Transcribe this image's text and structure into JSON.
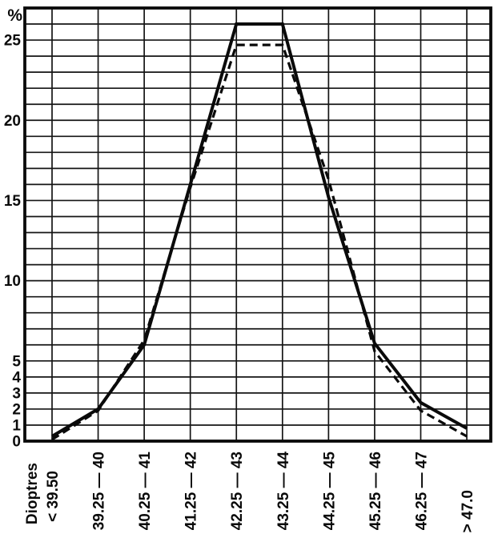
{
  "chart_data": {
    "type": "line",
    "title": "",
    "xlabel": "Dioptres",
    "ylabel": "%",
    "categories": [
      "< 39.50",
      "39.25 — 40",
      "40.25 — 41",
      "41.25 — 42",
      "42.25 — 43",
      "43.25 — 44",
      "44.25 — 45",
      "45.25 — 46",
      "46.25 — 47",
      "> 47.0"
    ],
    "series": [
      {
        "name": "solid-curve",
        "style": "solid",
        "color": "#0a0a0a",
        "values": [
          0.3,
          2.0,
          6.0,
          16.0,
          26.0,
          26.0,
          15.2,
          6.1,
          2.4,
          0.8
        ]
      },
      {
        "name": "dashed-curve",
        "style": "dashed",
        "color": "#0a0a0a",
        "values": [
          0.1,
          1.9,
          6.3,
          15.8,
          24.7,
          24.7,
          16.3,
          5.6,
          1.9,
          0.3
        ]
      }
    ],
    "y_axis": {
      "min": 0,
      "max": 27,
      "grid_step": 1,
      "tick_labels": [
        25,
        20,
        15,
        10,
        5,
        4,
        3,
        2,
        1,
        0
      ],
      "unit_symbol": "%"
    },
    "x_axis": {
      "title": "Dioptres",
      "label_rotation_deg": -90
    },
    "grid": {
      "horizontal": true,
      "vertical": true
    },
    "legend_position": "none",
    "frame_color": "#0a0a0a",
    "background_color": "#ffffff"
  }
}
